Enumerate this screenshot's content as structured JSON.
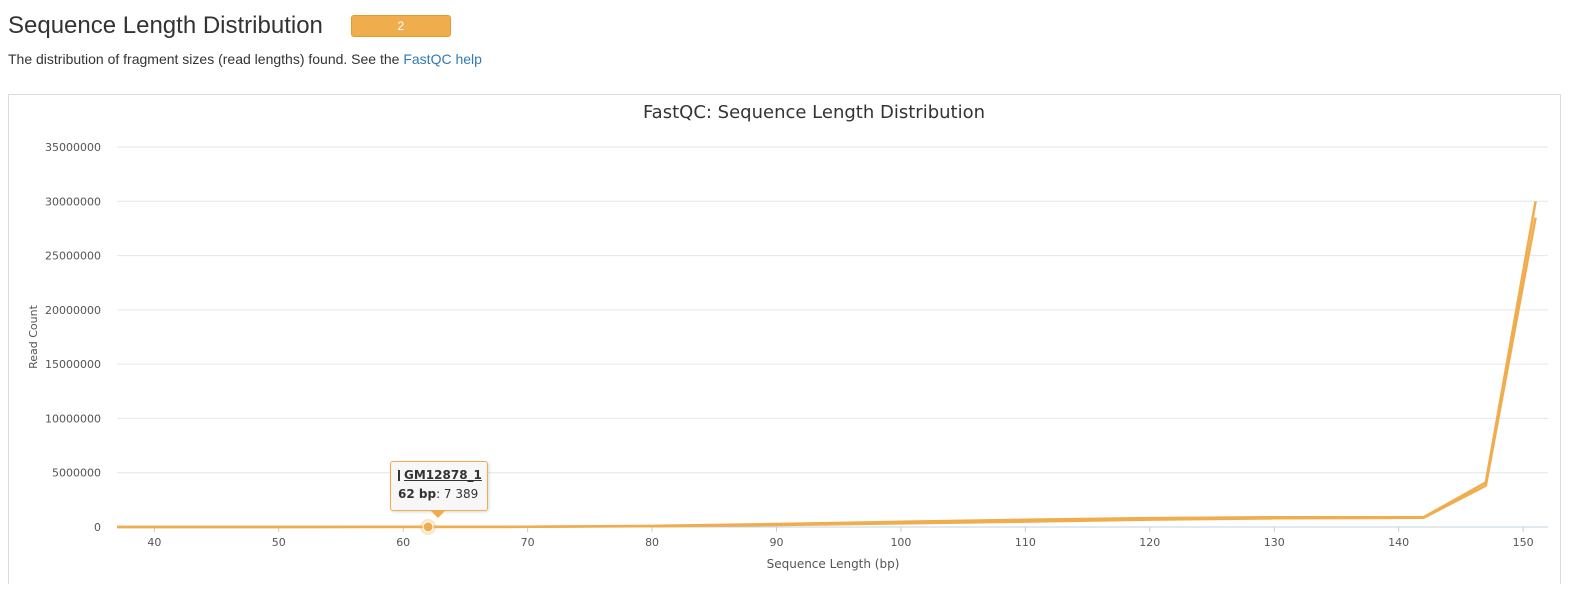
{
  "header": {
    "title": "Sequence Length Distribution",
    "badge": "2"
  },
  "description": {
    "text": "The distribution of fragment sizes (read lengths) found. See the ",
    "link": "FastQC help"
  },
  "tooltip": {
    "series": "GM12878_1",
    "x_label": "62 bp",
    "value": ": 7 389"
  },
  "colors": {
    "series": "#f0ad4e",
    "grid": "#e6e6e6",
    "link": "#337ab7"
  },
  "chart_data": {
    "type": "line",
    "title": "FastQC: Sequence Length Distribution",
    "xlabel": "Sequence Length (bp)",
    "ylabel": "Read Count",
    "xlim": [
      37,
      152
    ],
    "ylim": [
      0,
      35000000
    ],
    "xticks": [
      40,
      50,
      60,
      70,
      80,
      90,
      100,
      110,
      120,
      130,
      140,
      150
    ],
    "yticks": [
      0,
      5000000,
      10000000,
      15000000,
      20000000,
      25000000,
      30000000,
      35000000
    ],
    "grid": true,
    "series": [
      {
        "name": "GM12878_1",
        "points": [
          [
            37,
            2000
          ],
          [
            50,
            4000
          ],
          [
            62,
            7389
          ],
          [
            70,
            20000
          ],
          [
            80,
            100000
          ],
          [
            90,
            280000
          ],
          [
            100,
            480000
          ],
          [
            110,
            660000
          ],
          [
            120,
            820000
          ],
          [
            130,
            900000
          ],
          [
            142,
            900000
          ],
          [
            147,
            4100000
          ],
          [
            151,
            30000000
          ]
        ]
      },
      {
        "name": "",
        "points": [
          [
            37,
            1800
          ],
          [
            50,
            3500
          ],
          [
            62,
            6500
          ],
          [
            70,
            15000
          ],
          [
            80,
            70000
          ],
          [
            90,
            180000
          ],
          [
            100,
            330000
          ],
          [
            110,
            500000
          ],
          [
            120,
            680000
          ],
          [
            130,
            800000
          ],
          [
            142,
            850000
          ],
          [
            147,
            3800000
          ],
          [
            151,
            28500000
          ]
        ]
      }
    ],
    "highlight": {
      "series": 0,
      "x": 62,
      "y": 7389
    }
  }
}
